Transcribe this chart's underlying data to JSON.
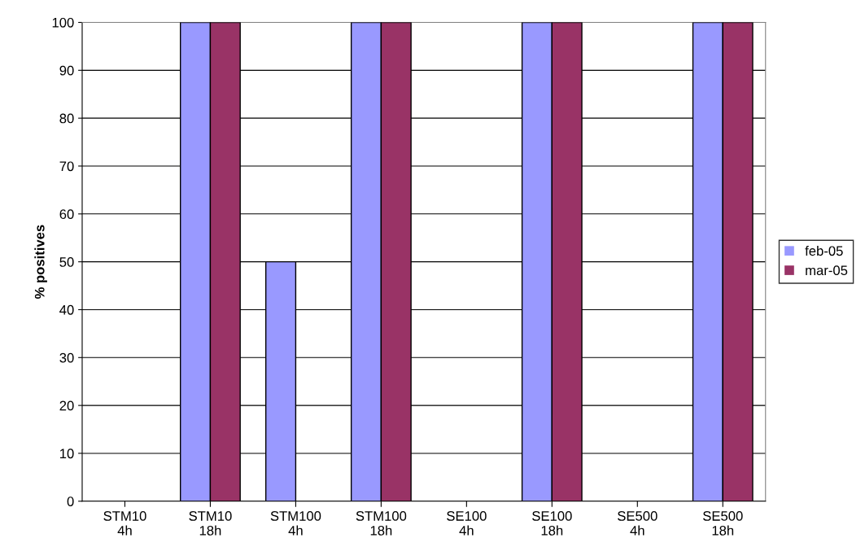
{
  "chart_data": {
    "type": "bar",
    "ylabel": "% positives",
    "categories": [
      "STM10\n4h",
      "STM10\n18h",
      "STM100\n4h",
      "STM100\n18h",
      "SE100\n4h",
      "SE100\n18h",
      "SE500\n4h",
      "SE500\n18h"
    ],
    "series": [
      {
        "name": "feb-05",
        "color": "#9999ff",
        "values": [
          0,
          100,
          50,
          100,
          0,
          100,
          0,
          100
        ]
      },
      {
        "name": "mar-05",
        "color": "#993366",
        "values": [
          0,
          100,
          0,
          100,
          0,
          100,
          0,
          100
        ]
      }
    ],
    "ylim": [
      0,
      100
    ],
    "yticks": [
      0,
      10,
      20,
      30,
      40,
      50,
      60,
      70,
      80,
      90,
      100
    ],
    "grid": "y",
    "legend": "right"
  }
}
